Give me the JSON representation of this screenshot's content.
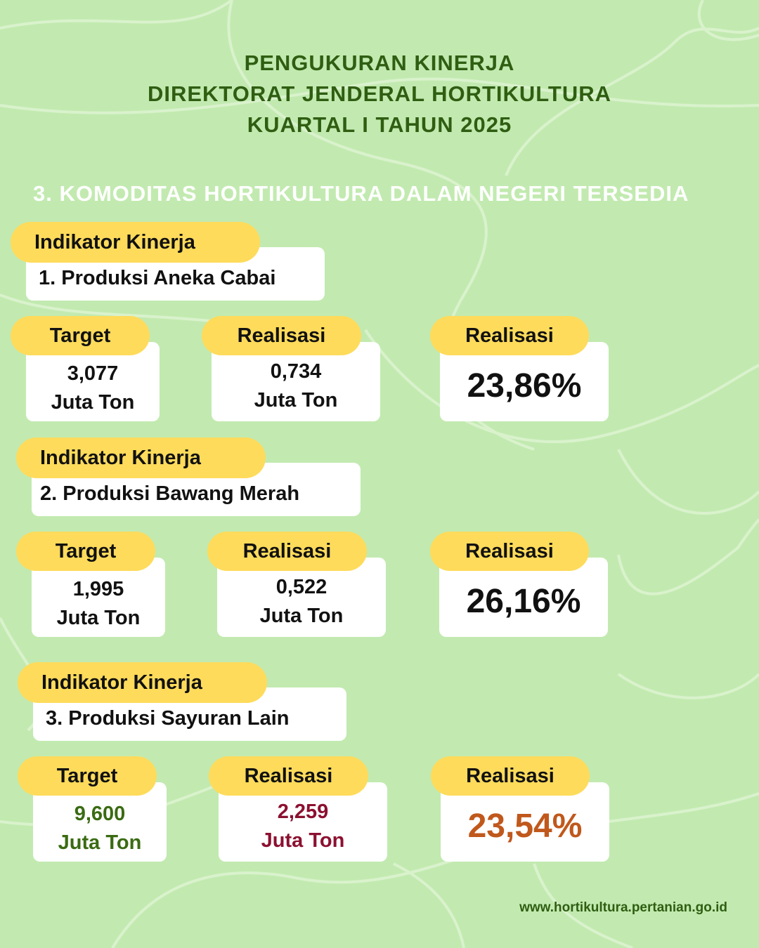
{
  "header": {
    "title_lines": [
      "PENGUKURAN KINERJA",
      "DIREKTORAT JENDERAL HORTIKULTURA",
      "KUARTAL I TAHUN 2025"
    ],
    "subtitle": "3. KOMODITAS HORTIKULTURA DALAM NEGERI TERSEDIA"
  },
  "colors": {
    "background": "#c2eab0",
    "pill": "#fedb5b",
    "title": "#2f5e12",
    "target3": "#3a6b12",
    "realisasi3": "#8c1030",
    "pct3": "#c0581c"
  },
  "indicators": [
    {
      "label": "Indikator Kinerja",
      "name": "1. Produksi Aneka Cabai",
      "target_label": "Target",
      "target_value": "3,077",
      "target_unit": "Juta Ton",
      "real_label": "Realisasi",
      "real_value": "0,734",
      "real_unit": "Juta Ton",
      "pct_label": "Realisasi",
      "pct": "23,86%"
    },
    {
      "label": "Indikator Kinerja",
      "name": "2. Produksi Bawang Merah",
      "target_label": "Target",
      "target_value": "1,995",
      "target_unit": "Juta Ton",
      "real_label": "Realisasi",
      "real_value": "0,522",
      "real_unit": "Juta Ton",
      "pct_label": "Realisasi",
      "pct": "26,16%"
    },
    {
      "label": "Indikator Kinerja",
      "name": "3. Produksi Sayuran Lain",
      "target_label": "Target",
      "target_value": "9,600",
      "target_unit": "Juta Ton",
      "real_label": "Realisasi",
      "real_value": "2,259",
      "real_unit": "Juta Ton",
      "pct_label": "Realisasi",
      "pct": "23,54%"
    }
  ],
  "footer": {
    "url": "www.hortikultura.pertanian.go.id"
  }
}
